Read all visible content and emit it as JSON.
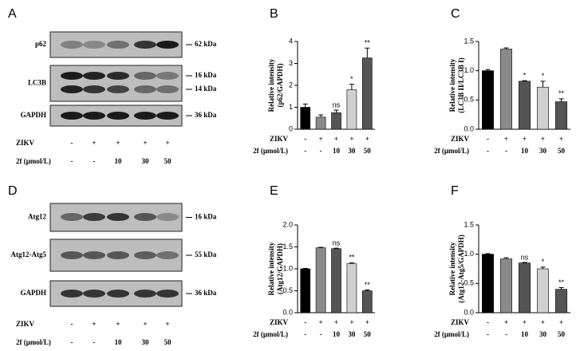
{
  "panels": [
    {
      "letter": "A",
      "rows": [
        {
          "name": "p62",
          "markers": [
            "62 kDa"
          ]
        },
        {
          "name": "LC3B",
          "markers": [
            "16 kDa",
            "14 kDa"
          ]
        },
        {
          "name": "GAPDH",
          "markers": [
            "36 kDa"
          ]
        }
      ],
      "conditions": [
        {
          "label": "ZIKV",
          "values": [
            "-",
            "+",
            "+",
            "+",
            "+"
          ]
        },
        {
          "label": "2f (μmol/L)",
          "values": [
            "-",
            "-",
            "10",
            "30",
            "50"
          ]
        }
      ]
    },
    {
      "letter": "D",
      "rows": [
        {
          "name": "Atg12",
          "markers": [
            "16 kDa"
          ]
        },
        {
          "name": "Atg12-Atg5",
          "markers": [
            "55 kDa"
          ]
        },
        {
          "name": "GAPDH",
          "markers": [
            "36 kDa"
          ]
        }
      ],
      "conditions": [
        {
          "label": "ZIKV",
          "values": [
            "-",
            "+",
            "+",
            "+",
            "+"
          ]
        },
        {
          "label": "2f (μmol/L)",
          "values": [
            "-",
            "-",
            "10",
            "30",
            "50"
          ]
        }
      ]
    }
  ],
  "chart_data": [
    {
      "type": "bar",
      "letter": "B",
      "ylabel": [
        "Relative intensity",
        "(p62/GAPDH)"
      ],
      "values": [
        1.0,
        0.55,
        0.75,
        1.8,
        3.25
      ],
      "errors": [
        0.15,
        0.1,
        0.12,
        0.25,
        0.45
      ],
      "significance": [
        null,
        null,
        "ns",
        "*",
        "**"
      ],
      "colors": [
        "#000000",
        "#8a8a8a",
        "#555555",
        "#d0d0d0",
        "#555555"
      ],
      "ylim": [
        0,
        4
      ],
      "yticks": [
        0,
        1,
        2,
        3,
        4
      ],
      "conditions": [
        {
          "label": "ZIKV",
          "values": [
            "-",
            "+",
            "+",
            "+",
            "+"
          ]
        },
        {
          "label": "2f (μmol/L)",
          "values": [
            "-",
            "-",
            "10",
            "30",
            "50"
          ]
        }
      ]
    },
    {
      "type": "bar",
      "letter": "C",
      "ylabel": [
        "Relative intensity",
        "(LC3B II/LC3B I)"
      ],
      "values": [
        1.0,
        1.37,
        0.82,
        0.72,
        0.47
      ],
      "errors": [
        0.02,
        0.02,
        0.01,
        0.1,
        0.05
      ],
      "significance": [
        null,
        null,
        "*",
        "*",
        "**"
      ],
      "colors": [
        "#000000",
        "#8a8a8a",
        "#555555",
        "#d0d0d0",
        "#555555"
      ],
      "ylim": [
        0,
        1.5
      ],
      "yticks": [
        {
          "value": 0,
          "label": "0.0"
        },
        {
          "value": 0.5,
          "label": "0.5"
        },
        {
          "value": 1,
          "label": "1.0"
        },
        {
          "value": 1.5,
          "label": "1.5"
        }
      ],
      "conditions": [
        {
          "label": "ZIKV",
          "values": [
            "-",
            "+",
            "+",
            "+",
            "+"
          ]
        },
        {
          "label": "2f (μmol/L)",
          "values": [
            "-",
            "-",
            "10",
            "30",
            "50"
          ]
        }
      ]
    },
    {
      "type": "bar",
      "letter": "E",
      "ylabel": [
        "Relative intensity",
        "(Atg12/GAPDH)"
      ],
      "values": [
        1.0,
        1.48,
        1.46,
        1.12,
        0.5
      ],
      "errors": [
        0.01,
        0.01,
        0.01,
        0.02,
        0.02
      ],
      "significance": [
        null,
        null,
        "ns",
        "**",
        "**"
      ],
      "colors": [
        "#000000",
        "#8a8a8a",
        "#555555",
        "#d0d0d0",
        "#555555"
      ],
      "ylim": [
        0,
        2
      ],
      "yticks": [
        {
          "value": 0,
          "label": "0.0"
        },
        {
          "value": 0.5,
          "label": "0.5"
        },
        {
          "value": 1,
          "label": "1.0"
        },
        {
          "value": 1.5,
          "label": "1.5"
        },
        {
          "value": 2,
          "label": "2.0"
        }
      ],
      "conditions": [
        {
          "label": "ZIKV",
          "values": [
            "-",
            "+",
            "+",
            "+",
            "+"
          ]
        },
        {
          "label": "2f (μmol/L)",
          "values": [
            "-",
            "-",
            "10",
            "30",
            "50"
          ]
        }
      ]
    },
    {
      "type": "bar",
      "letter": "F",
      "ylabel": [
        "Relative intensity",
        "(Atg12-Atg5/GAPDH)"
      ],
      "values": [
        1.0,
        0.92,
        0.85,
        0.75,
        0.4
      ],
      "errors": [
        0.01,
        0.02,
        0.01,
        0.03,
        0.03
      ],
      "significance": [
        null,
        null,
        "ns",
        "*",
        "**"
      ],
      "colors": [
        "#000000",
        "#8a8a8a",
        "#555555",
        "#d0d0d0",
        "#555555"
      ],
      "ylim": [
        0,
        1.5
      ],
      "yticks": [
        {
          "value": 0,
          "label": "0.0"
        },
        {
          "value": 0.5,
          "label": "0.5"
        },
        {
          "value": 1,
          "label": "1.0"
        },
        {
          "value": 1.5,
          "label": "1.5"
        }
      ],
      "conditions": [
        {
          "label": "ZIKV",
          "values": [
            "-",
            "+",
            "+",
            "+",
            "+"
          ]
        },
        {
          "label": "2f (μmol/L)",
          "values": [
            "-",
            "-",
            "10",
            "30",
            "50"
          ]
        }
      ]
    }
  ]
}
